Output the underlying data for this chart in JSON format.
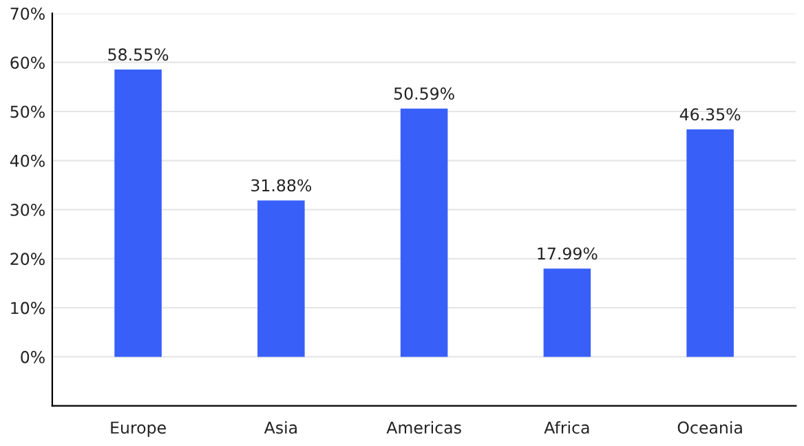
{
  "chart_data": {
    "type": "bar",
    "categories": [
      "Europe",
      "Asia",
      "Americas",
      "Africa",
      "Oceania"
    ],
    "values": [
      58.55,
      31.88,
      50.59,
      17.99,
      46.35
    ],
    "value_labels": [
      "58.55%",
      "31.88%",
      "50.59%",
      "17.99%",
      "46.35%"
    ],
    "color": "#385ff8",
    "ylim": [
      -10,
      70
    ],
    "yticks": [
      {
        "value": 0,
        "label": "0%"
      },
      {
        "value": 10,
        "label": "10%"
      },
      {
        "value": 20,
        "label": "20%"
      },
      {
        "value": 30,
        "label": "30%"
      },
      {
        "value": 40,
        "label": "40%"
      },
      {
        "value": 50,
        "label": "50%"
      },
      {
        "value": 60,
        "label": "60%"
      },
      {
        "value": 70,
        "label": "70%"
      }
    ],
    "grid": "y"
  }
}
